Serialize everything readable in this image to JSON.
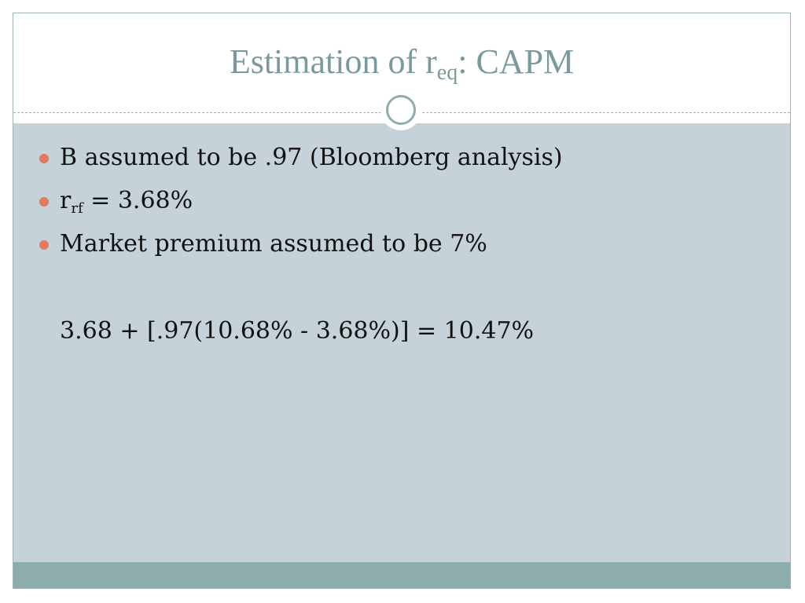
{
  "title": {
    "main": "Estimation of r",
    "subscript": "eq",
    "suffix": ": CAPM"
  },
  "bullets": [
    {
      "text": "B assumed to be .97 (Bloomberg analysis)"
    },
    {
      "prefix": "r",
      "subscript": "rf",
      "suffix": " = 3.68%"
    },
    {
      "text": "Market premium assumed to be 7%"
    }
  ],
  "formula": "3.68 + [.97(10.68% - 3.68%)] = 10.47%",
  "colors": {
    "title": "#7a9a9b",
    "content_background": "#c6d2da",
    "bullet": "#e07b5f",
    "footer": "#8dadad"
  }
}
